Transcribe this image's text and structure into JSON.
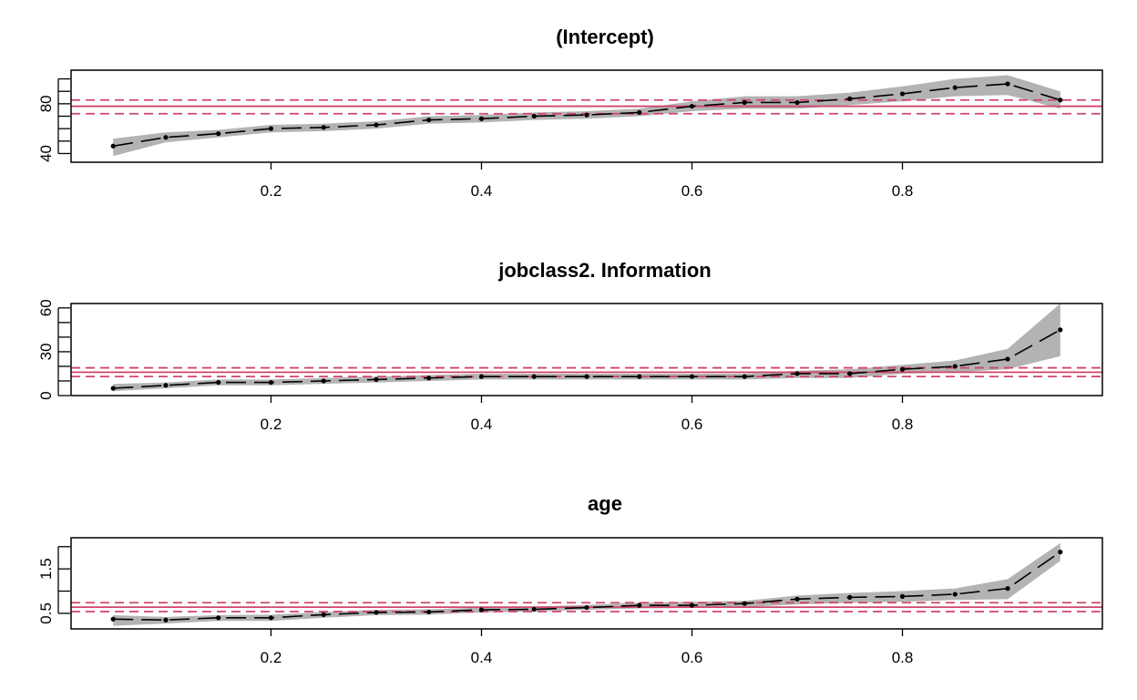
{
  "chart_data": [
    {
      "type": "line",
      "title": "(Intercept)",
      "xlabel": "",
      "ylabel": "",
      "xlim": [
        0.01,
        0.99
      ],
      "ylim": [
        33,
        107
      ],
      "x_ticks": [
        0.2,
        0.4,
        0.6,
        0.8
      ],
      "y_ticks": [
        40,
        80
      ],
      "y_minor_ticks": [
        40,
        50,
        60,
        70,
        80,
        90,
        100
      ],
      "x": [
        0.05,
        0.1,
        0.15,
        0.2,
        0.25,
        0.3,
        0.35,
        0.4,
        0.45,
        0.5,
        0.55,
        0.6,
        0.65,
        0.7,
        0.75,
        0.8,
        0.85,
        0.9,
        0.95
      ],
      "values": [
        46,
        53,
        56,
        60,
        61,
        63,
        67,
        68,
        70,
        71,
        73,
        78,
        81,
        81,
        84,
        88,
        93,
        96,
        83
      ],
      "ci_lower": [
        38,
        49,
        53,
        57,
        58,
        60,
        64,
        65,
        67,
        68,
        70,
        74,
        76,
        76,
        79,
        82,
        86,
        87,
        76
      ],
      "ci_upper": [
        52,
        57,
        59,
        63,
        64,
        66,
        70,
        71,
        73,
        74,
        76,
        82,
        86,
        86,
        89,
        94,
        100,
        103,
        90
      ],
      "reference": {
        "estimate": 78,
        "ci": [
          72,
          83
        ],
        "color": "#d0466a"
      },
      "grid": false
    },
    {
      "type": "line",
      "title": "jobclass2. Information",
      "xlabel": "",
      "ylabel": "",
      "xlim": [
        0.01,
        0.99
      ],
      "ylim": [
        0,
        63
      ],
      "x_ticks": [
        0.2,
        0.4,
        0.6,
        0.8
      ],
      "y_ticks": [
        0,
        30,
        60
      ],
      "y_minor_ticks": [
        0,
        10,
        20,
        30,
        40,
        50,
        60
      ],
      "x": [
        0.05,
        0.1,
        0.15,
        0.2,
        0.25,
        0.3,
        0.35,
        0.4,
        0.45,
        0.5,
        0.55,
        0.6,
        0.65,
        0.7,
        0.75,
        0.8,
        0.85,
        0.9,
        0.95
      ],
      "values": [
        5,
        7,
        9,
        9,
        10,
        11,
        12,
        13,
        13,
        13,
        13,
        13,
        13,
        15,
        15,
        18,
        20,
        25,
        45
      ],
      "ci_lower": [
        3,
        5,
        7,
        7,
        8,
        9,
        10,
        11,
        11,
        11,
        11,
        11,
        11,
        12,
        12,
        15,
        16,
        18,
        27
      ],
      "ci_upper": [
        8,
        9,
        11,
        11,
        12,
        13,
        14,
        15,
        15,
        15,
        15,
        15,
        15,
        17,
        18,
        21,
        24,
        32,
        63
      ],
      "reference": {
        "estimate": 16,
        "ci": [
          13,
          19
        ],
        "color": "#d0466a"
      },
      "grid": false
    },
    {
      "type": "line",
      "title": "age",
      "xlabel": "",
      "ylabel": "",
      "xlim": [
        0.01,
        0.99
      ],
      "ylim": [
        0.15,
        2.2
      ],
      "x_ticks": [
        0.2,
        0.4,
        0.6,
        0.8
      ],
      "y_ticks": [
        0.5,
        1.5
      ],
      "y_minor_ticks": [
        0.5,
        1.0,
        1.5,
        2.0
      ],
      "x": [
        0.05,
        0.1,
        0.15,
        0.2,
        0.25,
        0.3,
        0.35,
        0.4,
        0.45,
        0.5,
        0.55,
        0.6,
        0.65,
        0.7,
        0.75,
        0.8,
        0.85,
        0.9,
        0.95
      ],
      "values": [
        0.37,
        0.35,
        0.4,
        0.4,
        0.47,
        0.52,
        0.53,
        0.58,
        0.59,
        0.63,
        0.68,
        0.68,
        0.72,
        0.82,
        0.86,
        0.88,
        0.93,
        1.06,
        1.88
      ],
      "ci_lower": [
        0.22,
        0.27,
        0.33,
        0.33,
        0.4,
        0.46,
        0.47,
        0.52,
        0.54,
        0.58,
        0.61,
        0.62,
        0.64,
        0.7,
        0.74,
        0.76,
        0.8,
        0.82,
        1.68
      ],
      "ci_upper": [
        0.46,
        0.42,
        0.46,
        0.47,
        0.53,
        0.58,
        0.59,
        0.63,
        0.65,
        0.69,
        0.74,
        0.76,
        0.78,
        0.9,
        0.96,
        1.0,
        1.06,
        1.27,
        2.08
      ],
      "reference": {
        "estimate": 0.64,
        "ci": [
          0.54,
          0.74
        ],
        "color": "#d0466a"
      },
      "grid": false
    }
  ]
}
